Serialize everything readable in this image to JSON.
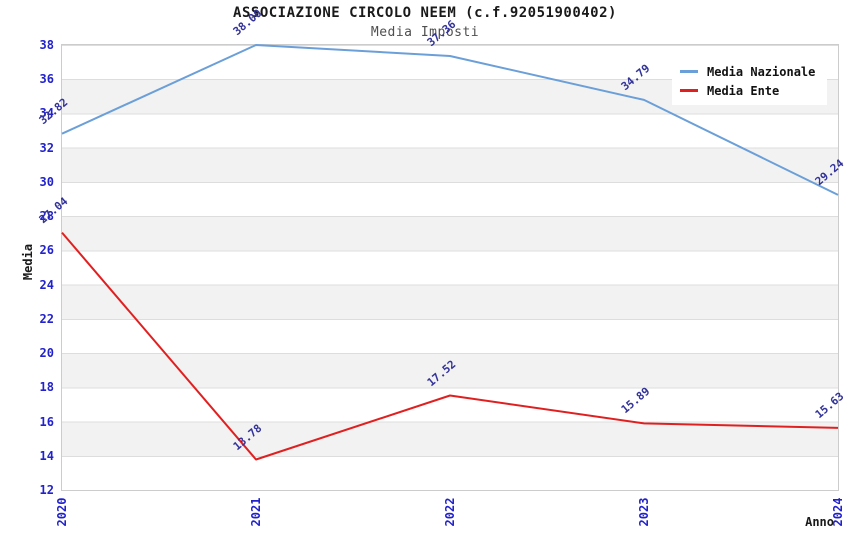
{
  "header": {
    "title": "ASSOCIAZIONE CIRCOLO NEEM (c.f.92051900402)",
    "subtitle": "Media Imposti"
  },
  "chart_data": {
    "type": "line",
    "x": [
      2020,
      2021,
      2022,
      2023,
      2024
    ],
    "series": [
      {
        "name": "Media Nazionale",
        "color": "#6b9fd8",
        "values": [
          32.82,
          38.0,
          37.36,
          34.79,
          29.24
        ]
      },
      {
        "name": "Media Ente",
        "color": "#e02020",
        "values": [
          27.04,
          13.78,
          17.52,
          15.89,
          15.63
        ]
      }
    ],
    "title": "ASSOCIAZIONE CIRCOLO NEEM (c.f.92051900402)",
    "subtitle": "Media Imposti",
    "xlabel": "Anno",
    "ylabel": "Media",
    "ylim": [
      12,
      38
    ],
    "ytick_step": 2,
    "data_labels_decimals": 2,
    "legend_position": "top-right",
    "grid": "horizontal-bands"
  },
  "colors": {
    "series_nazionale": "#6b9fd8",
    "series_ente": "#e02020",
    "axis_ticks": "#2222cc",
    "data_labels": "#333399",
    "band_fill": "#f2f2f2",
    "gridline": "#dddddd",
    "plot_border": "#cccccc"
  }
}
